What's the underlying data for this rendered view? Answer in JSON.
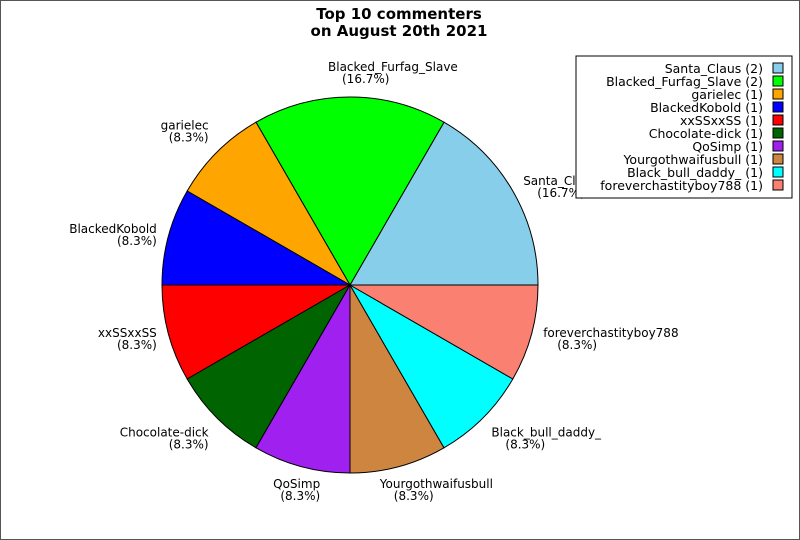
{
  "chart_data": {
    "type": "pie",
    "title": "Top 10 commenters\non August 20th 2021",
    "title_lines": [
      "Top 10 commenters",
      "on August 20th 2021"
    ],
    "legend_placement": "top-right",
    "slices": [
      {
        "label": "Santa_Claus",
        "value": 2,
        "pct": "(16.7%)",
        "legend": "Santa_Claus (2)",
        "color": "#87ceeb"
      },
      {
        "label": "Blacked_Furfag_Slave",
        "value": 2,
        "pct": "(16.7%)",
        "legend": "Blacked_Furfag_Slave (2)",
        "color": "#00ff00"
      },
      {
        "label": "garielec",
        "value": 1,
        "pct": "(8.3%)",
        "legend": "garielec (1)",
        "color": "#ffa500"
      },
      {
        "label": "BlackedKobold",
        "value": 1,
        "pct": "(8.3%)",
        "legend": "BlackedKobold (1)",
        "color": "#0000ff"
      },
      {
        "label": "xxSSxxSS",
        "value": 1,
        "pct": "(8.3%)",
        "legend": "xxSSxxSS (1)",
        "color": "#ff0000"
      },
      {
        "label": "Chocolate-dick",
        "value": 1,
        "pct": "(8.3%)",
        "legend": "Chocolate-dick (1)",
        "color": "#006400"
      },
      {
        "label": "QoSimp",
        "value": 1,
        "pct": "(8.3%)",
        "legend": "QoSimp (1)",
        "color": "#a020f0"
      },
      {
        "label": "Yourgothwaifusbull",
        "value": 1,
        "pct": "(8.3%)",
        "legend": "Yourgothwaifusbull (1)",
        "color": "#cd853f"
      },
      {
        "label": "Black_bull_daddy_",
        "value": 1,
        "pct": "(8.3%)",
        "legend": "Black_bull_daddy_ (1)",
        "color": "#00ffff"
      },
      {
        "label": "foreverchastityboy788",
        "value": 1,
        "pct": "(8.3%)",
        "legend": "foreverchastityboy788 (1)",
        "color": "#fa8072"
      }
    ]
  }
}
